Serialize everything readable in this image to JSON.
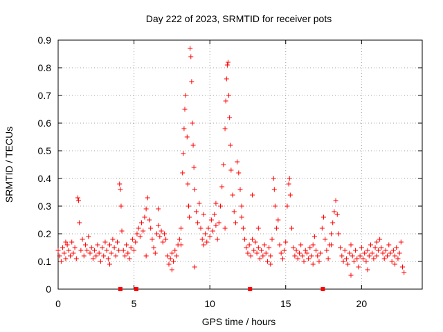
{
  "chart_data": {
    "type": "scatter",
    "title": "Day 222 of 2023, SRMTID for receiver pots",
    "xlabel": "GPS time / hours",
    "ylabel": "SRMTID / TECUs",
    "xlim": [
      0,
      24
    ],
    "ylim": [
      0,
      0.9
    ],
    "x_ticks": [
      0,
      5,
      10,
      15,
      20
    ],
    "y_ticks": [
      0,
      0.1,
      0.2,
      0.3,
      0.4,
      0.5,
      0.6,
      0.7,
      0.8,
      0.9
    ],
    "y_tick_labels": [
      "0",
      "0.1",
      "0.2",
      "0.3",
      "0.4",
      "0.5",
      "0.6",
      "0.7",
      "0.8",
      "0.9"
    ],
    "grid": true,
    "marker": "+",
    "color": "#ff0000",
    "series": [
      {
        "name": "SRMTID",
        "points": [
          [
            0.0,
            0.14
          ],
          [
            0.1,
            0.12
          ],
          [
            0.2,
            0.1
          ],
          [
            0.3,
            0.15
          ],
          [
            0.4,
            0.13
          ],
          [
            0.5,
            0.11
          ],
          [
            0.6,
            0.16
          ],
          [
            0.7,
            0.14
          ],
          [
            0.8,
            0.12
          ],
          [
            0.9,
            0.17
          ],
          [
            1.0,
            0.13
          ],
          [
            1.1,
            0.15
          ],
          [
            1.2,
            0.11
          ],
          [
            1.3,
            0.33
          ],
          [
            1.35,
            0.32
          ],
          [
            1.4,
            0.24
          ],
          [
            1.5,
            0.14
          ],
          [
            1.6,
            0.18
          ],
          [
            1.7,
            0.12
          ],
          [
            1.8,
            0.16
          ],
          [
            1.9,
            0.14
          ],
          [
            2.0,
            0.19
          ],
          [
            2.1,
            0.13
          ],
          [
            2.2,
            0.15
          ],
          [
            2.3,
            0.11
          ],
          [
            2.4,
            0.14
          ],
          [
            2.5,
            0.12
          ],
          [
            2.6,
            0.16
          ],
          [
            2.7,
            0.13
          ],
          [
            2.8,
            0.1
          ],
          [
            2.9,
            0.15
          ],
          [
            3.0,
            0.12
          ],
          [
            3.1,
            0.17
          ],
          [
            3.2,
            0.14
          ],
          [
            3.3,
            0.11
          ],
          [
            3.4,
            0.16
          ],
          [
            3.5,
            0.13
          ],
          [
            3.6,
            0.18
          ],
          [
            3.7,
            0.15
          ],
          [
            3.8,
            0.12
          ],
          [
            3.9,
            0.17
          ],
          [
            4.0,
            0.14
          ],
          [
            4.05,
            0.38
          ],
          [
            4.1,
            0.36
          ],
          [
            4.15,
            0.3
          ],
          [
            4.2,
            0.21
          ],
          [
            4.3,
            0.14
          ],
          [
            4.4,
            0.12
          ],
          [
            4.5,
            0.16
          ],
          [
            4.6,
            0.13
          ],
          [
            4.7,
            0.11
          ],
          [
            4.8,
            0.15
          ],
          [
            4.9,
            0.18
          ],
          [
            5.0,
            0.14
          ],
          [
            5.1,
            0.17
          ],
          [
            5.2,
            0.2
          ],
          [
            5.3,
            0.22
          ],
          [
            5.4,
            0.19
          ],
          [
            5.5,
            0.24
          ],
          [
            5.6,
            0.21
          ],
          [
            5.7,
            0.26
          ],
          [
            5.8,
            0.29
          ],
          [
            5.9,
            0.33
          ],
          [
            6.0,
            0.25
          ],
          [
            6.1,
            0.22
          ],
          [
            6.2,
            0.18
          ],
          [
            6.3,
            0.15
          ],
          [
            6.4,
            0.13
          ],
          [
            6.5,
            0.2
          ],
          [
            6.6,
            0.23
          ],
          [
            6.7,
            0.19
          ],
          [
            6.8,
            0.21
          ],
          [
            6.9,
            0.17
          ],
          [
            7.0,
            0.2
          ],
          [
            7.1,
            0.18
          ],
          [
            7.2,
            0.12
          ],
          [
            7.3,
            0.09
          ],
          [
            7.4,
            0.11
          ],
          [
            7.5,
            0.13
          ],
          [
            7.6,
            0.1
          ],
          [
            7.7,
            0.14
          ],
          [
            7.8,
            0.12
          ],
          [
            7.9,
            0.16
          ],
          [
            8.0,
            0.18
          ],
          [
            8.1,
            0.22
          ],
          [
            8.2,
            0.42
          ],
          [
            8.25,
            0.49
          ],
          [
            8.3,
            0.58
          ],
          [
            8.35,
            0.65
          ],
          [
            8.4,
            0.7
          ],
          [
            8.5,
            0.55
          ],
          [
            8.55,
            0.38
          ],
          [
            8.6,
            0.3
          ],
          [
            8.65,
            0.26
          ],
          [
            8.7,
            0.87
          ],
          [
            8.75,
            0.84
          ],
          [
            8.8,
            0.75
          ],
          [
            8.85,
            0.6
          ],
          [
            8.9,
            0.52
          ],
          [
            8.95,
            0.44
          ],
          [
            9.0,
            0.36
          ],
          [
            9.1,
            0.28
          ],
          [
            9.2,
            0.24
          ],
          [
            9.3,
            0.31
          ],
          [
            9.4,
            0.22
          ],
          [
            9.5,
            0.18
          ],
          [
            9.6,
            0.16
          ],
          [
            9.7,
            0.2
          ],
          [
            9.8,
            0.17
          ],
          [
            9.9,
            0.22
          ],
          [
            10.0,
            0.19
          ],
          [
            10.1,
            0.25
          ],
          [
            10.2,
            0.21
          ],
          [
            10.3,
            0.27
          ],
          [
            10.4,
            0.23
          ],
          [
            10.5,
            0.18
          ],
          [
            10.6,
            0.24
          ],
          [
            10.7,
            0.3
          ],
          [
            10.8,
            0.37
          ],
          [
            10.9,
            0.45
          ],
          [
            11.0,
            0.58
          ],
          [
            11.05,
            0.68
          ],
          [
            11.1,
            0.76
          ],
          [
            11.15,
            0.81
          ],
          [
            11.2,
            0.82
          ],
          [
            11.25,
            0.7
          ],
          [
            11.3,
            0.62
          ],
          [
            11.35,
            0.52
          ],
          [
            11.4,
            0.43
          ],
          [
            11.5,
            0.34
          ],
          [
            11.6,
            0.28
          ],
          [
            11.7,
            0.24
          ],
          [
            11.8,
            0.46
          ],
          [
            11.9,
            0.42
          ],
          [
            12.0,
            0.36
          ],
          [
            12.1,
            0.3
          ],
          [
            12.2,
            0.22
          ],
          [
            12.3,
            0.18
          ],
          [
            12.4,
            0.15
          ],
          [
            12.5,
            0.13
          ],
          [
            12.6,
            0.16
          ],
          [
            12.7,
            0.12
          ],
          [
            12.8,
            0.18
          ],
          [
            12.9,
            0.14
          ],
          [
            13.0,
            0.17
          ],
          [
            13.1,
            0.13
          ],
          [
            13.2,
            0.15
          ],
          [
            13.3,
            0.11
          ],
          [
            13.4,
            0.14
          ],
          [
            13.5,
            0.12
          ],
          [
            13.6,
            0.16
          ],
          [
            13.7,
            0.13
          ],
          [
            13.8,
            0.1
          ],
          [
            13.9,
            0.15
          ],
          [
            14.0,
            0.12
          ],
          [
            14.1,
            0.18
          ],
          [
            14.2,
            0.4
          ],
          [
            14.25,
            0.36
          ],
          [
            14.3,
            0.3
          ],
          [
            14.4,
            0.22
          ],
          [
            14.5,
            0.25
          ],
          [
            14.6,
            0.16
          ],
          [
            14.7,
            0.13
          ],
          [
            14.8,
            0.11
          ],
          [
            14.9,
            0.14
          ],
          [
            15.0,
            0.17
          ],
          [
            15.1,
            0.3
          ],
          [
            15.2,
            0.38
          ],
          [
            15.25,
            0.4
          ],
          [
            15.3,
            0.34
          ],
          [
            15.4,
            0.22
          ],
          [
            15.5,
            0.15
          ],
          [
            15.6,
            0.12
          ],
          [
            15.7,
            0.14
          ],
          [
            15.8,
            0.11
          ],
          [
            15.9,
            0.13
          ],
          [
            16.0,
            0.16
          ],
          [
            16.1,
            0.12
          ],
          [
            16.2,
            0.1
          ],
          [
            16.3,
            0.14
          ],
          [
            16.4,
            0.13
          ],
          [
            16.5,
            0.11
          ],
          [
            16.6,
            0.15
          ],
          [
            16.7,
            0.12
          ],
          [
            16.8,
            0.16
          ],
          [
            16.9,
            0.19
          ],
          [
            17.0,
            0.14
          ],
          [
            17.1,
            0.12
          ],
          [
            17.2,
            0.1
          ],
          [
            17.3,
            0.13
          ],
          [
            17.4,
            0.22
          ],
          [
            17.5,
            0.26
          ],
          [
            17.6,
            0.18
          ],
          [
            17.7,
            0.14
          ],
          [
            17.8,
            0.11
          ],
          [
            17.9,
            0.16
          ],
          [
            18.0,
            0.2
          ],
          [
            18.1,
            0.24
          ],
          [
            18.2,
            0.28
          ],
          [
            18.3,
            0.32
          ],
          [
            18.4,
            0.27
          ],
          [
            18.5,
            0.2
          ],
          [
            18.6,
            0.15
          ],
          [
            18.7,
            0.12
          ],
          [
            18.8,
            0.1
          ],
          [
            18.9,
            0.14
          ],
          [
            19.0,
            0.11
          ],
          [
            19.1,
            0.09
          ],
          [
            19.2,
            0.13
          ],
          [
            19.3,
            0.16
          ],
          [
            19.4,
            0.12
          ],
          [
            19.5,
            0.1
          ],
          [
            19.6,
            0.14
          ],
          [
            19.7,
            0.11
          ],
          [
            19.8,
            0.08
          ],
          [
            19.9,
            0.12
          ],
          [
            20.0,
            0.15
          ],
          [
            20.1,
            0.11
          ],
          [
            20.2,
            0.13
          ],
          [
            20.3,
            0.1
          ],
          [
            20.4,
            0.14
          ],
          [
            20.5,
            0.12
          ],
          [
            20.6,
            0.16
          ],
          [
            20.7,
            0.13
          ],
          [
            20.8,
            0.11
          ],
          [
            20.9,
            0.15
          ],
          [
            21.0,
            0.12
          ],
          [
            21.1,
            0.14
          ],
          [
            21.2,
            0.18
          ],
          [
            21.3,
            0.15
          ],
          [
            21.4,
            0.13
          ],
          [
            21.5,
            0.11
          ],
          [
            21.6,
            0.14
          ],
          [
            21.7,
            0.12
          ],
          [
            21.8,
            0.16
          ],
          [
            21.9,
            0.13
          ],
          [
            22.0,
            0.1
          ],
          [
            22.1,
            0.14
          ],
          [
            22.2,
            0.12
          ],
          [
            22.3,
            0.15
          ],
          [
            22.4,
            0.11
          ],
          [
            22.5,
            0.13
          ],
          [
            22.6,
            0.17
          ],
          [
            22.7,
            0.08
          ],
          [
            22.8,
            0.06
          ],
          [
            0.5,
            0.17
          ],
          [
            3.4,
            0.09
          ],
          [
            5.8,
            0.12
          ],
          [
            7.5,
            0.07
          ],
          [
            9.6,
            0.27
          ],
          [
            10.4,
            0.31
          ],
          [
            12.8,
            0.34
          ],
          [
            14.0,
            0.09
          ],
          [
            16.8,
            0.09
          ],
          [
            18.0,
            0.16
          ],
          [
            19.3,
            0.05
          ],
          [
            21.0,
            0.17
          ],
          [
            22.2,
            0.09
          ],
          [
            6.6,
            0.29
          ],
          [
            11.0,
            0.22
          ],
          [
            12.1,
            0.26
          ],
          [
            8.1,
            0.16
          ],
          [
            9.0,
            0.08
          ],
          [
            13.2,
            0.22
          ],
          [
            20.4,
            0.07
          ]
        ]
      }
    ],
    "baseline_markers_x": [
      4.1,
      5.15,
      12.65,
      17.45
    ]
  }
}
